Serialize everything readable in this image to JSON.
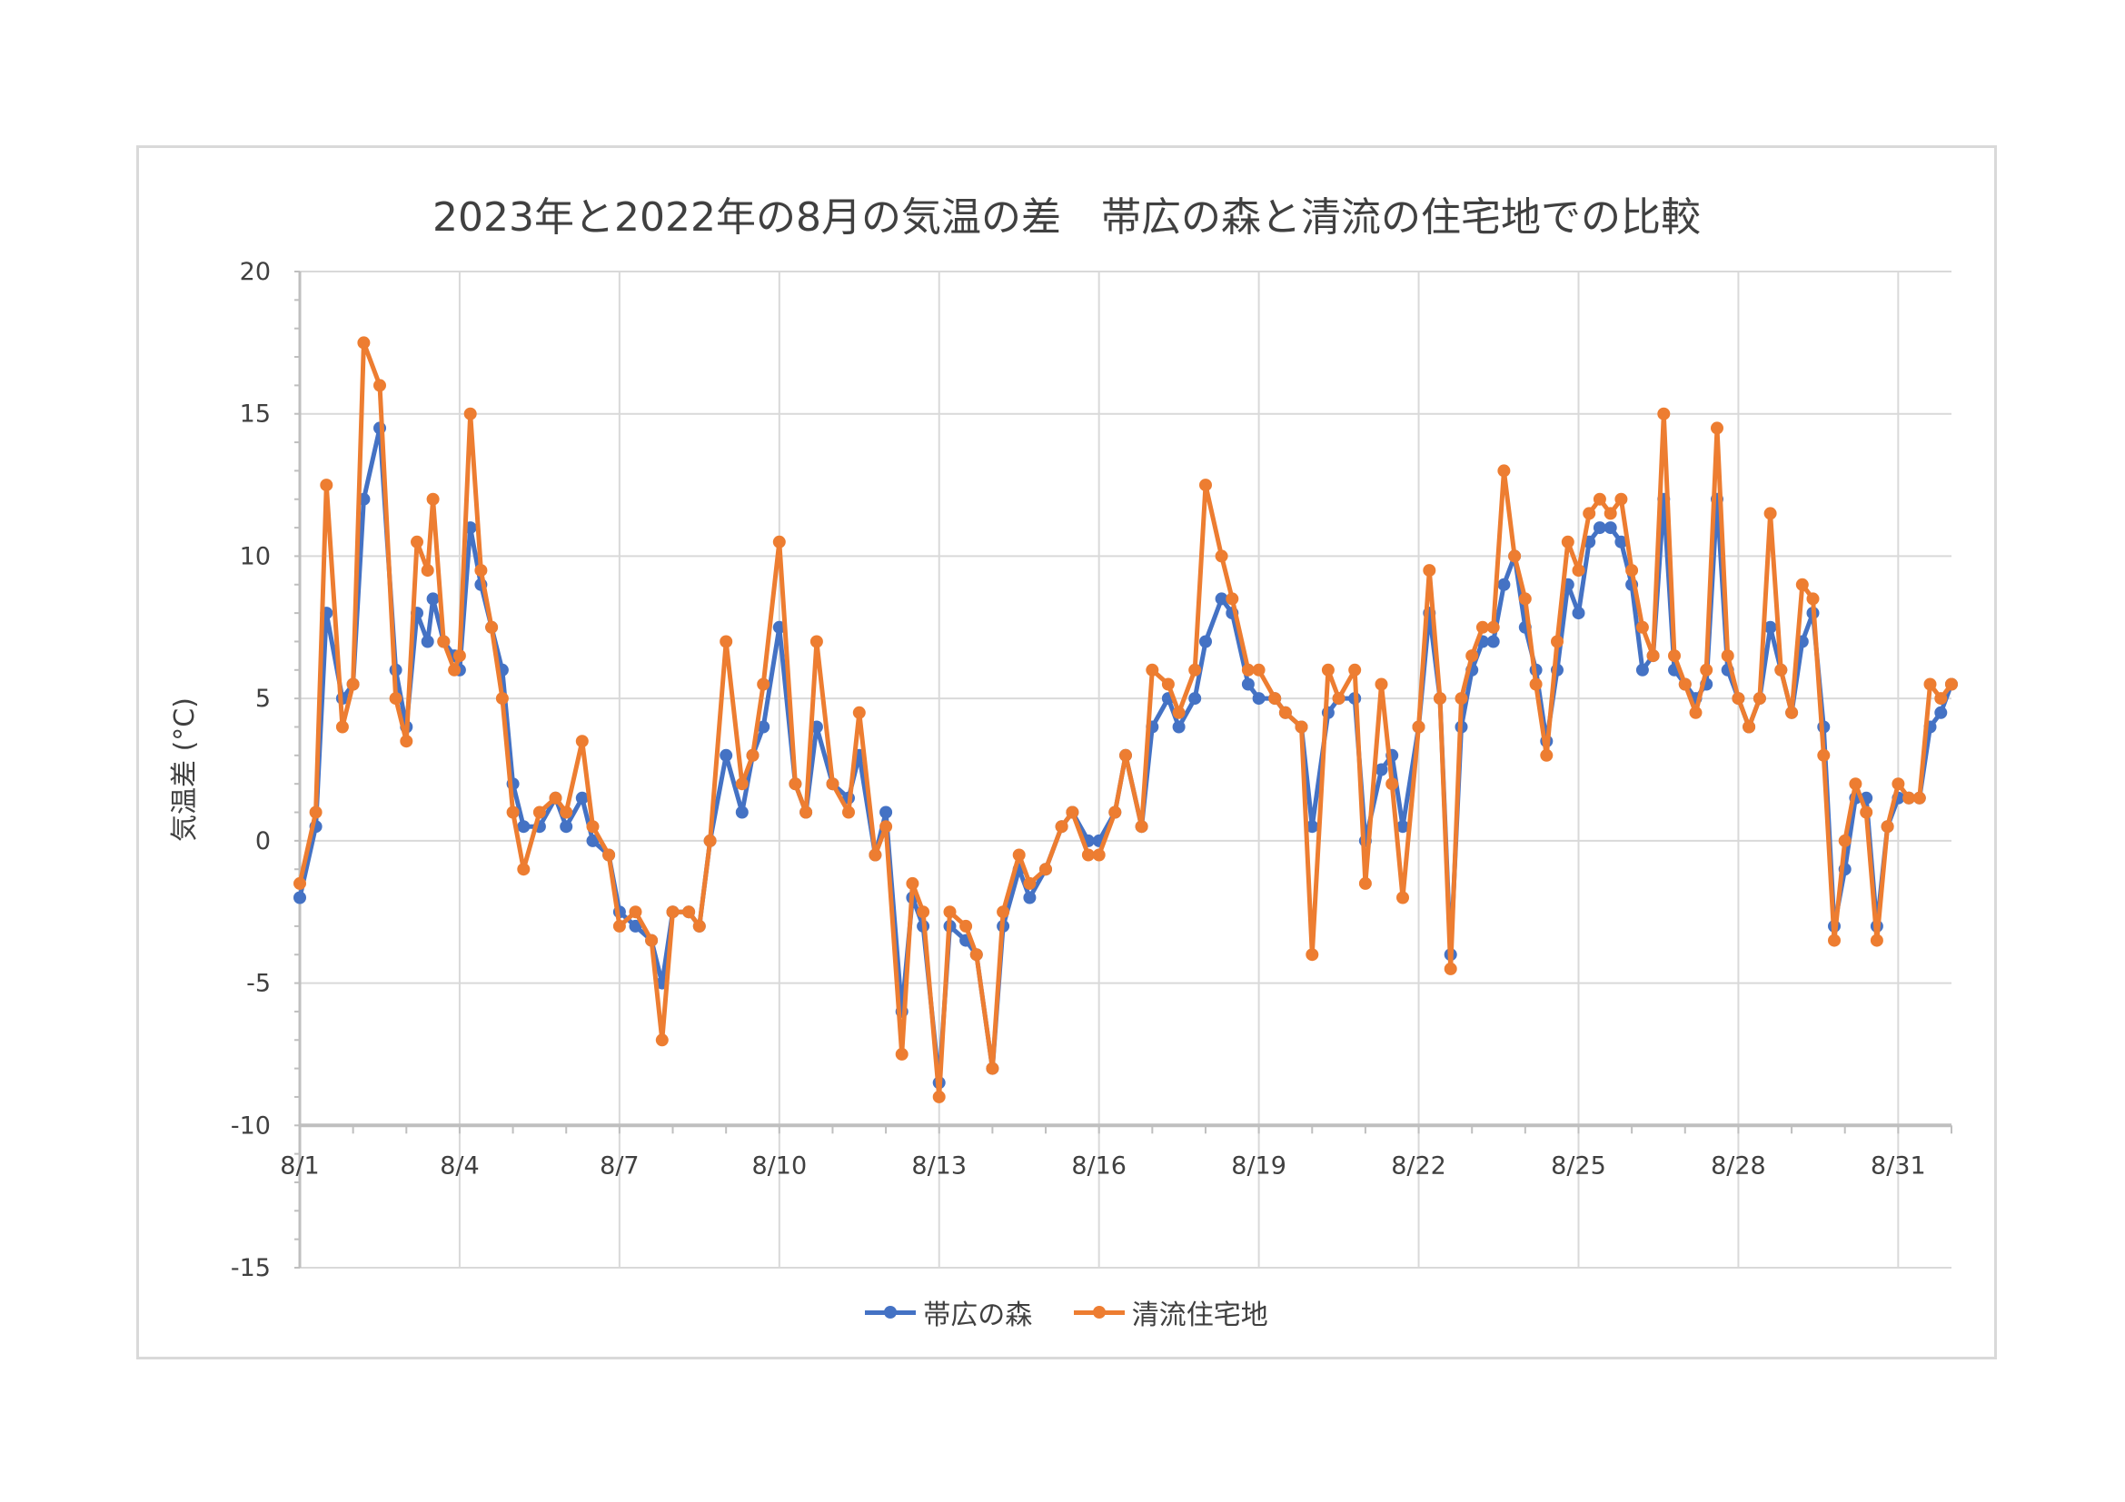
{
  "chart_data": {
    "type": "line",
    "title": "2023年と2022年の8月の気温の差　帯広の森と清流の住宅地での比較",
    "ylabel": "気温差 (°C)",
    "xlabel": "",
    "ylim": [
      -15,
      20
    ],
    "yticks": [
      -15,
      -10,
      -5,
      0,
      5,
      10,
      15,
      20
    ],
    "x_crosses_y_at": -10,
    "xlim_days": [
      1,
      32
    ],
    "x_tick_labels": [
      "8/1",
      "8/4",
      "8/7",
      "8/10",
      "8/13",
      "8/16",
      "8/19",
      "8/22",
      "8/25",
      "8/28",
      "8/31"
    ],
    "grid": true,
    "legend": "bottom",
    "series": [
      {
        "name": "帯広の森",
        "color": "#4472c4",
        "x": [
          1.0,
          1.3,
          1.5,
          1.8,
          2.0,
          2.2,
          2.5,
          2.8,
          3.0,
          3.2,
          3.4,
          3.5,
          3.7,
          3.9,
          4.0,
          4.2,
          4.4,
          4.6,
          4.8,
          5.0,
          5.2,
          5.5,
          5.8,
          6.0,
          6.3,
          6.5,
          6.8,
          7.0,
          7.3,
          7.6,
          7.8,
          8.0,
          8.3,
          8.5,
          8.7,
          9.0,
          9.3,
          9.5,
          9.7,
          10.0,
          10.3,
          10.5,
          10.7,
          11.0,
          11.3,
          11.5,
          11.8,
          12.0,
          12.3,
          12.5,
          12.7,
          13.0,
          13.2,
          13.5,
          13.7,
          14.0,
          14.2,
          14.5,
          14.7,
          15.0,
          15.3,
          15.5,
          15.8,
          16.0,
          16.3,
          16.5,
          16.8,
          17.0,
          17.3,
          17.5,
          17.8,
          18.0,
          18.3,
          18.5,
          18.8,
          19.0,
          19.3,
          19.5,
          19.8,
          20.0,
          20.3,
          20.5,
          20.8,
          21.0,
          21.3,
          21.5,
          21.7,
          22.0,
          22.2,
          22.4,
          22.6,
          22.8,
          23.0,
          23.2,
          23.4,
          23.6,
          23.8,
          24.0,
          24.2,
          24.4,
          24.6,
          24.8,
          25.0,
          25.2,
          25.4,
          25.6,
          25.8,
          26.0,
          26.2,
          26.4,
          26.6,
          26.8,
          27.0,
          27.2,
          27.4,
          27.6,
          27.8,
          28.0,
          28.2,
          28.4,
          28.6,
          28.8,
          29.0,
          29.2,
          29.4,
          29.6,
          29.8,
          30.0,
          30.2,
          30.4,
          30.6,
          30.8,
          31.0,
          31.2,
          31.4,
          31.6,
          31.8,
          32.0
        ],
        "y": [
          -2.0,
          0.5,
          8.0,
          5.0,
          5.5,
          12.0,
          14.5,
          6.0,
          4.0,
          8.0,
          7.0,
          8.5,
          7.0,
          6.5,
          6.0,
          11.0,
          9.0,
          7.5,
          6.0,
          2.0,
          0.5,
          0.5,
          1.5,
          0.5,
          1.5,
          0.0,
          -0.5,
          -2.5,
          -3.0,
          -3.5,
          -5.0,
          -2.5,
          -2.5,
          -3.0,
          0.0,
          3.0,
          1.0,
          3.0,
          4.0,
          7.5,
          2.0,
          1.0,
          4.0,
          2.0,
          1.5,
          3.0,
          -0.5,
          1.0,
          -6.0,
          -2.0,
          -3.0,
          -8.5,
          -3.0,
          -3.5,
          -4.0,
          -8.0,
          -3.0,
          -1.0,
          -2.0,
          -1.0,
          0.5,
          1.0,
          0.0,
          0.0,
          1.0,
          3.0,
          0.5,
          4.0,
          5.0,
          4.0,
          5.0,
          7.0,
          8.5,
          8.0,
          5.5,
          5.0,
          5.0,
          4.5,
          4.0,
          0.5,
          4.5,
          5.0,
          5.0,
          0.0,
          2.5,
          3.0,
          0.5,
          4.0,
          8.0,
          5.0,
          -4.0,
          4.0,
          6.0,
          7.0,
          7.0,
          9.0,
          10.0,
          7.5,
          6.0,
          3.5,
          6.0,
          9.0,
          8.0,
          10.5,
          11.0,
          11.0,
          10.5,
          9.0,
          6.0,
          6.5,
          12.0,
          6.0,
          5.5,
          5.0,
          5.5,
          12.0,
          6.0,
          5.0,
          4.0,
          5.0,
          7.5,
          6.0,
          4.5,
          7.0,
          8.0,
          4.0,
          -3.0,
          -1.0,
          1.5,
          1.5,
          -3.0,
          0.5,
          1.5,
          1.5,
          1.5,
          4.0,
          4.5,
          5.5
        ]
      },
      {
        "name": "清流住宅地",
        "color": "#ed7d31",
        "x": [
          1.0,
          1.3,
          1.5,
          1.8,
          2.0,
          2.2,
          2.5,
          2.8,
          3.0,
          3.2,
          3.4,
          3.5,
          3.7,
          3.9,
          4.0,
          4.2,
          4.4,
          4.6,
          4.8,
          5.0,
          5.2,
          5.5,
          5.8,
          6.0,
          6.3,
          6.5,
          6.8,
          7.0,
          7.3,
          7.6,
          7.8,
          8.0,
          8.3,
          8.5,
          8.7,
          9.0,
          9.3,
          9.5,
          9.7,
          10.0,
          10.3,
          10.5,
          10.7,
          11.0,
          11.3,
          11.5,
          11.8,
          12.0,
          12.3,
          12.5,
          12.7,
          13.0,
          13.2,
          13.5,
          13.7,
          14.0,
          14.2,
          14.5,
          14.7,
          15.0,
          15.3,
          15.5,
          15.8,
          16.0,
          16.3,
          16.5,
          16.8,
          17.0,
          17.3,
          17.5,
          17.8,
          18.0,
          18.3,
          18.5,
          18.8,
          19.0,
          19.3,
          19.5,
          19.8,
          20.0,
          20.3,
          20.5,
          20.8,
          21.0,
          21.3,
          21.5,
          21.7,
          22.0,
          22.2,
          22.4,
          22.6,
          22.8,
          23.0,
          23.2,
          23.4,
          23.6,
          23.8,
          24.0,
          24.2,
          24.4,
          24.6,
          24.8,
          25.0,
          25.2,
          25.4,
          25.6,
          25.8,
          26.0,
          26.2,
          26.4,
          26.6,
          26.8,
          27.0,
          27.2,
          27.4,
          27.6,
          27.8,
          28.0,
          28.2,
          28.4,
          28.6,
          28.8,
          29.0,
          29.2,
          29.4,
          29.6,
          29.8,
          30.0,
          30.2,
          30.4,
          30.6,
          30.8,
          31.0,
          31.2,
          31.4,
          31.6,
          31.8,
          32.0
        ],
        "y": [
          -1.5,
          1.0,
          12.5,
          4.0,
          5.5,
          17.5,
          16.0,
          5.0,
          3.5,
          10.5,
          9.5,
          12.0,
          7.0,
          6.0,
          6.5,
          15.0,
          9.5,
          7.5,
          5.0,
          1.0,
          -1.0,
          1.0,
          1.5,
          1.0,
          3.5,
          0.5,
          -0.5,
          -3.0,
          -2.5,
          -3.5,
          -7.0,
          -2.5,
          -2.5,
          -3.0,
          0.0,
          7.0,
          2.0,
          3.0,
          5.5,
          10.5,
          2.0,
          1.0,
          7.0,
          2.0,
          1.0,
          4.5,
          -0.5,
          0.5,
          -7.5,
          -1.5,
          -2.5,
          -9.0,
          -2.5,
          -3.0,
          -4.0,
          -8.0,
          -2.5,
          -0.5,
          -1.5,
          -1.0,
          0.5,
          1.0,
          -0.5,
          -0.5,
          1.0,
          3.0,
          0.5,
          6.0,
          5.5,
          4.5,
          6.0,
          12.5,
          10.0,
          8.5,
          6.0,
          6.0,
          5.0,
          4.5,
          4.0,
          -4.0,
          6.0,
          5.0,
          6.0,
          -1.5,
          5.5,
          2.0,
          -2.0,
          4.0,
          9.5,
          5.0,
          -4.5,
          5.0,
          6.5,
          7.5,
          7.5,
          13.0,
          10.0,
          8.5,
          5.5,
          3.0,
          7.0,
          10.5,
          9.5,
          11.5,
          12.0,
          11.5,
          12.0,
          9.5,
          7.5,
          6.5,
          15.0,
          6.5,
          5.5,
          4.5,
          6.0,
          14.5,
          6.5,
          5.0,
          4.0,
          5.0,
          11.5,
          6.0,
          4.5,
          9.0,
          8.5,
          3.0,
          -3.5,
          0.0,
          2.0,
          1.0,
          -3.5,
          0.5,
          2.0,
          1.5,
          1.5,
          5.5,
          5.0,
          5.5
        ]
      }
    ]
  }
}
